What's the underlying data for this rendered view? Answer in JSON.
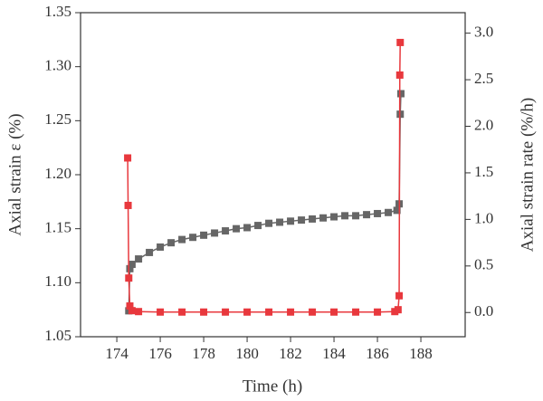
{
  "chart_data": {
    "type": "line",
    "x_label": "Time (h)",
    "y_label": "Axial strain ε (%)",
    "y2_label": "Axial strain rate (%/h)",
    "xlim": [
      172.33,
      190.04
    ],
    "xticks": [
      174,
      176,
      178,
      180,
      182,
      184,
      186,
      188
    ],
    "ylim": [
      1.05,
      1.35
    ],
    "yticks": [
      {
        "value": 1.05,
        "label": "1.05"
      },
      {
        "value": 1.1,
        "label": "1.10"
      },
      {
        "value": 1.15,
        "label": "1.15"
      },
      {
        "value": 1.2,
        "label": "1.20"
      },
      {
        "value": 1.25,
        "label": "1.25"
      },
      {
        "value": 1.3,
        "label": "1.30"
      },
      {
        "value": 1.35,
        "label": "1.35"
      }
    ],
    "y2lim": [
      -0.26,
      3.22
    ],
    "y2ticks": [
      {
        "value": 0,
        "label": "0.0"
      },
      {
        "value": 0.5,
        "label": "0.5"
      },
      {
        "value": 1,
        "label": "1.0"
      },
      {
        "value": 1.5,
        "label": "1.5"
      },
      {
        "value": 2,
        "label": "2.0"
      },
      {
        "value": 2.5,
        "label": "2.5"
      },
      {
        "value": 3,
        "label": "3.0"
      }
    ],
    "series": [
      {
        "color": "#666666",
        "x": [
          174.55,
          174.6,
          174.7,
          175,
          175.5,
          176,
          176.5,
          177,
          177.5,
          178,
          178.5,
          179,
          179.5,
          180,
          180.5,
          181,
          181.5,
          182,
          182.5,
          183,
          183.5,
          184,
          184.5,
          185,
          185.5,
          186,
          186.5,
          186.9,
          187.0,
          187.05,
          187.08
        ],
        "values": [
          1.074,
          1.113,
          1.117,
          1.122,
          1.128,
          1.133,
          1.137,
          1.14,
          1.142,
          1.144,
          1.146,
          1.148,
          1.15,
          1.151,
          1.153,
          1.155,
          1.156,
          1.157,
          1.158,
          1.159,
          1.16,
          1.161,
          1.162,
          1.162,
          1.163,
          1.164,
          1.165,
          1.167,
          1.173,
          1.256,
          1.275
        ]
      },
      {
        "color": "#e8383d",
        "axis": "y2",
        "x": [
          174.5,
          174.52,
          174.55,
          174.6,
          174.7,
          175,
          176,
          177,
          178,
          179,
          180,
          181,
          182,
          183,
          184,
          185,
          186,
          186.8,
          186.95,
          187.0,
          187.03,
          187.05
        ],
        "values": [
          1.66,
          1.15,
          0.37,
          0.07,
          0.02,
          0.01,
          0.005,
          0.005,
          0.005,
          0.005,
          0.005,
          0.005,
          0.005,
          0.005,
          0.005,
          0.005,
          0.005,
          0.01,
          0.03,
          0.18,
          2.55,
          2.9
        ]
      }
    ]
  }
}
